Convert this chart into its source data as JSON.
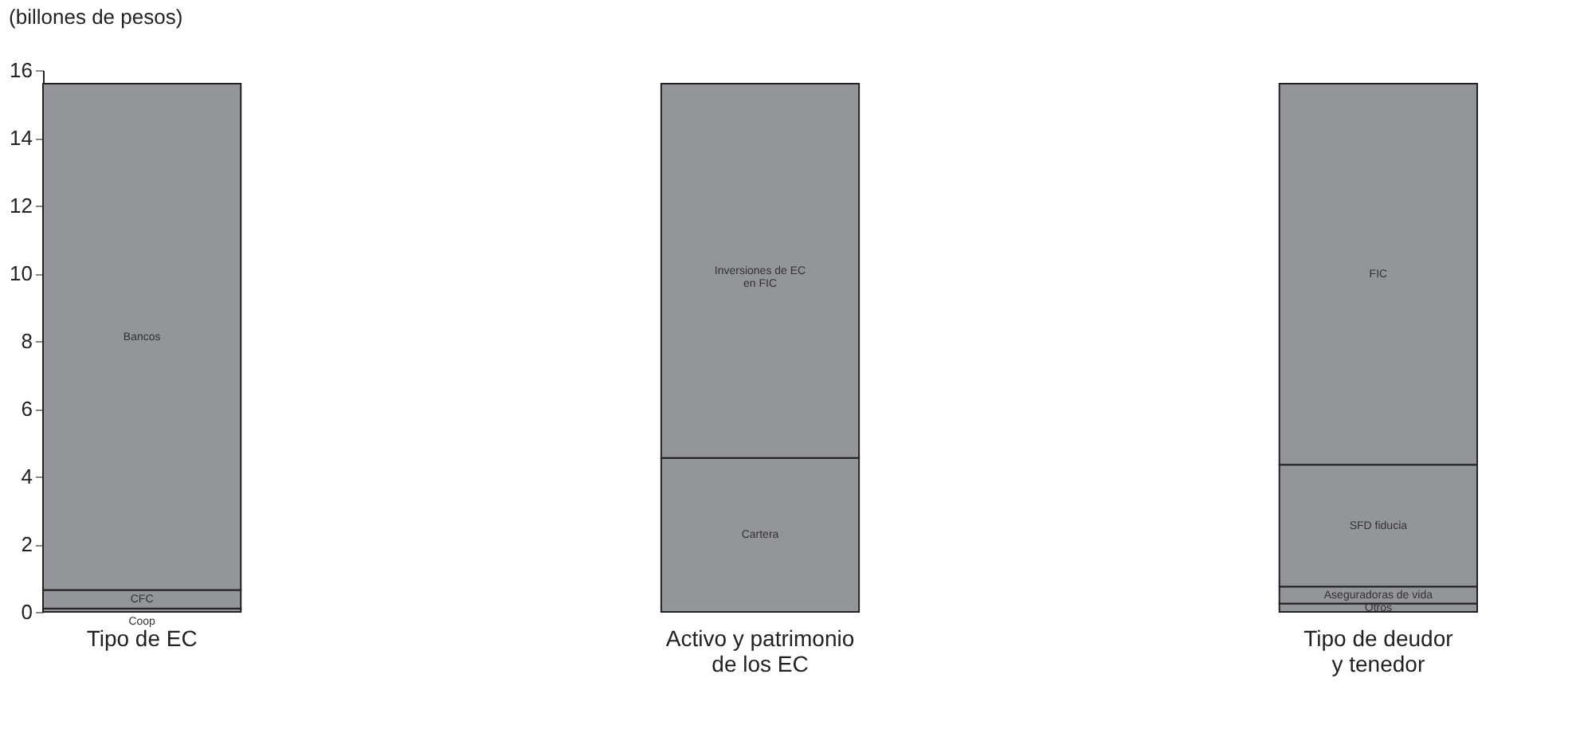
{
  "chart_data": {
    "type": "bar",
    "stacked": true,
    "ylabel": "(billones de pesos)",
    "categories": [
      "Tipo de EC",
      "Activo y patrimonio\nde los EC",
      "Tipo de deudor\ny tenedor"
    ],
    "series": [
      {
        "name": "Coop",
        "color": "#939598",
        "values": [
          0.1,
          null,
          null
        ]
      },
      {
        "name": "CFC",
        "color": "#939598",
        "values": [
          0.55,
          null,
          null
        ]
      },
      {
        "name": "Bancos",
        "color": "#939598",
        "values": [
          14.95,
          null,
          null
        ]
      },
      {
        "name": "Cartera",
        "color": "#939598",
        "values": [
          null,
          4.55,
          null
        ]
      },
      {
        "name": "Inversiones de EC\nen FIC",
        "color": "#939598",
        "values": [
          null,
          11.05,
          null
        ]
      },
      {
        "name": "Otros",
        "color": "#939598",
        "values": [
          null,
          null,
          0.25
        ]
      },
      {
        "name": "Aseguradoras de vida",
        "color": "#939598",
        "values": [
          null,
          null,
          0.5
        ]
      },
      {
        "name": "SFD fiducia",
        "color": "#939598",
        "values": [
          null,
          null,
          3.6
        ]
      },
      {
        "name": "FIC",
        "color": "#939598",
        "values": [
          null,
          null,
          11.25
        ]
      }
    ],
    "ylim": [
      0,
      16
    ],
    "yticks": [
      0,
      2,
      4,
      6,
      8,
      10,
      12,
      14,
      16
    ],
    "grid": false
  }
}
